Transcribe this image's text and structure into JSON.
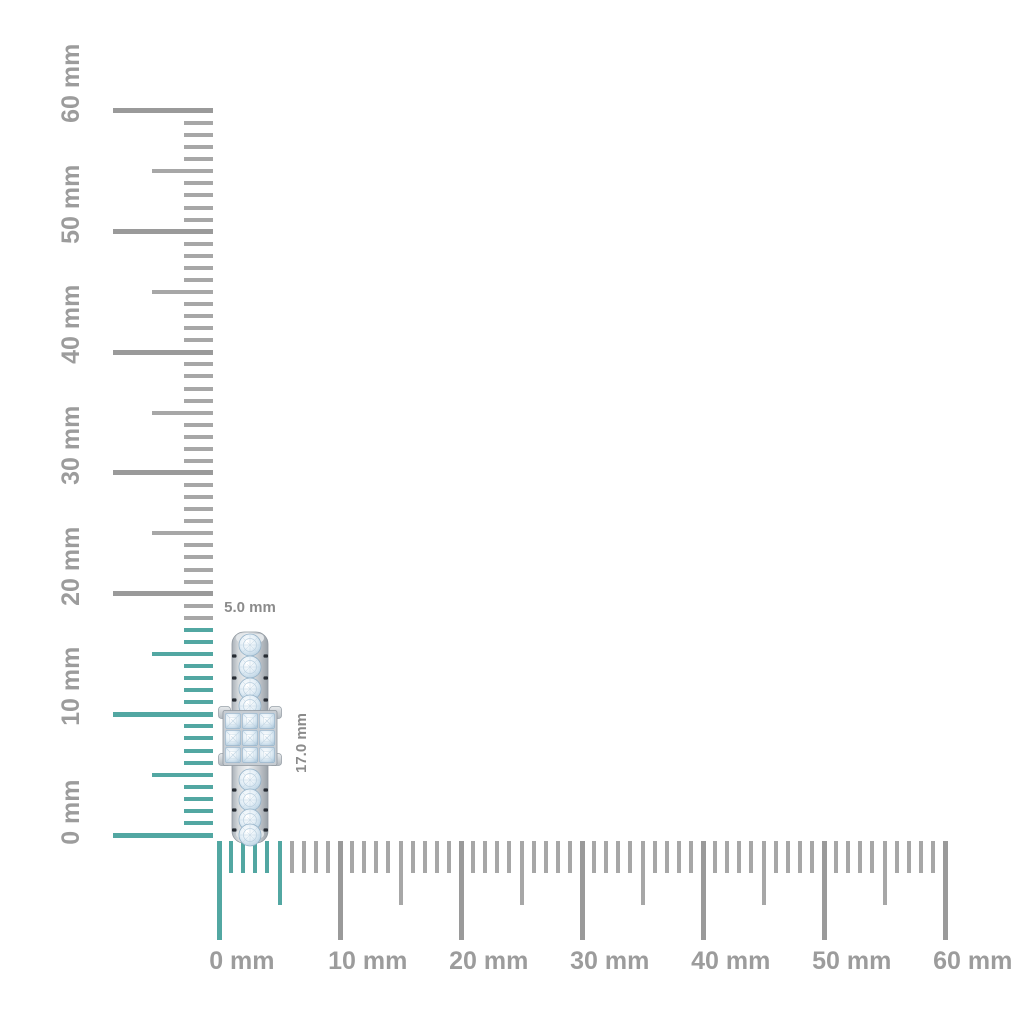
{
  "page": {
    "background_color": "#ffffff",
    "description": "Jewelry size guide: diamond ring side profile shown against millimeter rulers"
  },
  "colors": {
    "ruler_highlight_teal": "#52a7a2",
    "ruler_tick_minor_gray": "#a7a7a7",
    "ruler_tick_major_gray": "#9a9a9a",
    "ruler_label_gray": "#9c9c9c",
    "dimension_label_gray": "#8b8b8b"
  },
  "vertical_ruler": {
    "unit": "mm",
    "min_mm": 0,
    "max_mm": 60,
    "tick_step_mm": 1,
    "half_tick_step_mm": 5,
    "major_tick_step_mm": 10,
    "highlighted_span_mm": 17,
    "labels": [
      "0 mm",
      "10 mm",
      "20 mm",
      "30 mm",
      "40 mm",
      "50 mm",
      "60 mm"
    ]
  },
  "horizontal_ruler": {
    "unit": "mm",
    "min_mm": 0,
    "max_mm": 60,
    "tick_step_mm": 1,
    "half_tick_step_mm": 5,
    "major_tick_step_mm": 10,
    "highlighted_span_mm": 5,
    "labels": [
      "0 mm",
      "10 mm",
      "20 mm",
      "30 mm",
      "40 mm",
      "50 mm",
      "60 mm"
    ]
  },
  "dimensions": {
    "width_label": "5.0 mm",
    "height_label": "17.0 mm"
  },
  "item": {
    "name": "pave-diamond-ring-side-view"
  }
}
